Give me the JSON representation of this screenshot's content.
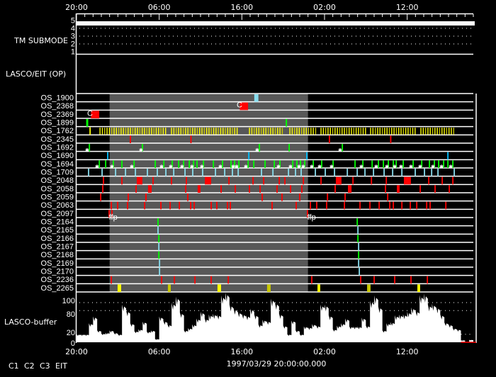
{
  "colors": {
    "C1": "#ff0000",
    "C2": "#00ff00",
    "C3": "#88ddee",
    "C3_alt": "#00c0ff",
    "EIT": "#ffff00",
    "EIT_alt": "#c8c800",
    "shade": "#585858",
    "axis": "#ffffff"
  },
  "time_axis": {
    "start": "03/29 20:00",
    "end": "03/31 20:00",
    "major_labels": [
      "20:00",
      "06:00",
      "16:00",
      "02:00",
      "12:00"
    ],
    "major_times": [
      "03/29 20:00",
      "03/30 06:00",
      "03/30 16:00",
      "03/31 02:00",
      "03/31 12:00"
    ]
  },
  "footer_date": "1997/03/29 20:00:00.000",
  "legend": [
    {
      "label": "C1",
      "color_key": "C1"
    },
    {
      "label": "C2",
      "color_key": "C2"
    },
    {
      "label": "C3",
      "color_key": "C3"
    },
    {
      "label": "EIT",
      "color_key": "EIT"
    }
  ],
  "tm_submode": {
    "label": "TM SUBMODE",
    "levels": [
      "5",
      "4",
      "3",
      "2",
      "1"
    ],
    "value": 5
  },
  "lasco_eit": {
    "label": "LASCO/EIT (OP)"
  },
  "shaded_period": {
    "start": "03/30 00:00",
    "end": "03/31 00:00"
  },
  "rows": [
    {
      "name": "OS_1900",
      "blocks": [
        {
          "c": "C3",
          "s": "03/30 17:30",
          "e": "03/30 18:00"
        }
      ]
    },
    {
      "name": "OS_2368",
      "blocks": [
        {
          "c": "C1",
          "s": "03/30 15:45",
          "e": "03/30 16:45"
        }
      ],
      "labels": [
        {
          "t": "03/30 15:22",
          "text": "C",
          "c": "axis"
        }
      ]
    },
    {
      "name": "OS_2369",
      "blocks": [
        {
          "c": "C1",
          "s": "03/29 21:45",
          "e": "03/29 22:45"
        }
      ],
      "labels": [
        {
          "t": "03/29 21:17",
          "text": "C",
          "c": "axis"
        }
      ]
    },
    {
      "name": "OS_1899",
      "blocks": [
        {
          "c": "C2",
          "s": "03/29 21:10",
          "e": "03/29 21:25"
        },
        {
          "c": "C2",
          "s": "03/30 21:18",
          "e": "03/30 21:28"
        }
      ]
    },
    {
      "name": "OS_1762",
      "lines": [
        {
          "c": "EIT",
          "times": [
            "03/29 21:38"
          ]
        }
      ],
      "series_segments": [
        {
          "c": "EIT",
          "s": "03/29 22:50",
          "e": "03/30 06:53",
          "interval_min": 17
        },
        {
          "c": "EIT",
          "s": "03/30 07:29",
          "e": "03/30 15:32",
          "interval_min": 17
        },
        {
          "c": "EIT",
          "s": "03/30 16:55",
          "e": "03/30 21:02",
          "interval_min": 17
        },
        {
          "c": "EIT",
          "s": "03/30 21:48",
          "e": "03/31 00:58",
          "interval_min": 17
        },
        {
          "c": "EIT",
          "s": "03/31 01:34",
          "e": "03/31 06:58",
          "interval_min": 17
        },
        {
          "c": "EIT",
          "s": "03/31 07:34",
          "e": "03/31 12:58",
          "interval_min": 17
        },
        {
          "c": "EIT",
          "s": "03/31 13:39",
          "e": "03/31 17:41",
          "interval_min": 17
        }
      ]
    },
    {
      "name": "OS_2345",
      "lines": [
        {
          "c": "C1",
          "times": [
            "03/30 02:30",
            "03/30 09:50",
            "03/31 02:35",
            "03/31 10:00"
          ]
        }
      ]
    },
    {
      "name": "OS_1692",
      "lines": [
        {
          "c": "C2",
          "times": [
            "03/29 21:33",
            "03/30 03:58",
            "03/30 18:07",
            "03/30 21:43",
            "03/31 04:09"
          ]
        }
      ],
      "stars": [
        "03/29 21:17",
        "03/30 03:48",
        "03/30 17:51",
        "03/31 03:53"
      ]
    },
    {
      "name": "OS_1690",
      "lines": [
        {
          "c": "C3_alt",
          "times": [
            "03/29 23:46",
            "03/30 16:50",
            "03/30 23:51",
            "03/31 16:55"
          ]
        }
      ]
    },
    {
      "name": "OS_1694",
      "lines": [
        {
          "c": "C2",
          "times": [
            "03/29 22:45",
            "03/29 23:31",
            "03/30 00:27",
            "03/30 01:29",
            "03/30 02:57",
            "03/30 05:31",
            "03/30 06:33",
            "03/30 07:34",
            "03/30 08:21",
            "03/30 08:57",
            "03/30 09:38",
            "03/30 10:09",
            "03/30 10:34",
            "03/30 11:21",
            "03/30 12:33",
            "03/30 13:39",
            "03/30 14:41",
            "03/30 15:07",
            "03/30 15:38",
            "03/30 16:45",
            "03/30 17:26",
            "03/30 18:48",
            "03/30 19:55",
            "03/30 20:36",
            "03/30 22:09",
            "03/30 22:39",
            "03/30 23:05",
            "03/30 23:36",
            "03/31 00:38",
            "03/31 01:39",
            "03/31 03:02",
            "03/31 05:41",
            "03/31 06:38",
            "03/31 07:45",
            "03/31 08:31",
            "03/31 09:07",
            "03/31 09:43",
            "03/31 10:19",
            "03/31 10:40",
            "03/31 11:31",
            "03/31 12:43",
            "03/31 13:45",
            "03/31 14:41",
            "03/31 15:17",
            "03/31 15:48",
            "03/31 16:24",
            "03/31 16:55",
            "03/31 17:31"
          ]
        }
      ],
      "stars": [
        "03/29 22:29",
        "03/30 00:17",
        "03/30 02:41",
        "03/30 06:17",
        "03/30 07:24",
        "03/30 08:46",
        "03/30 09:58",
        "03/30 11:10",
        "03/30 13:24",
        "03/30 14:57",
        "03/30 15:22",
        "03/30 16:29",
        "03/30 20:26",
        "03/30 21:53",
        "03/30 22:55",
        "03/30 23:26",
        "03/31 00:27",
        "03/31 01:24",
        "03/31 02:51",
        "03/31 06:27",
        "03/31 08:15",
        "03/31 09:33",
        "03/31 10:29",
        "03/31 11:15",
        "03/31 12:27",
        "03/31 13:34",
        "03/31 15:07",
        "03/31 16:09",
        "03/31 17:16"
      ]
    },
    {
      "name": "OS_1709",
      "lines": [
        {
          "c": "C3",
          "times": [
            "03/29 21:27",
            "03/29 23:05",
            "03/30 00:43",
            "03/30 01:55",
            "03/30 03:07",
            "03/30 04:34",
            "03/30 05:46",
            "03/30 06:48",
            "03/30 07:45",
            "03/30 09:07",
            "03/30 10:03",
            "03/30 11:15",
            "03/30 12:48",
            "03/30 13:55",
            "03/30 14:51",
            "03/30 15:33",
            "03/30 18:22",
            "03/30 19:45",
            "03/30 21:38",
            "03/30 22:29",
            "03/30 23:10",
            "03/31 00:53",
            "03/31 02:05",
            "03/31 03:12",
            "03/31 04:45",
            "03/31 05:57",
            "03/31 06:53",
            "03/31 07:55",
            "03/31 09:12",
            "03/31 10:14",
            "03/31 11:21",
            "03/31 12:58",
            "03/31 14:05",
            "03/31 14:57",
            "03/31 15:43",
            "03/31 17:41"
          ]
        }
      ]
    },
    {
      "name": "OS_2048",
      "lines": [
        {
          "c": "C1",
          "times": [
            "03/29 23:15",
            "03/30 01:29",
            "03/30 05:15",
            "03/30 07:29",
            "03/30 09:17",
            "03/30 14:26",
            "03/30 17:21",
            "03/30 18:38",
            "03/30 20:31",
            "03/30 21:12",
            "03/30 23:26",
            "03/31 01:34",
            "03/31 05:26",
            "03/31 07:40",
            "03/31 09:28",
            "03/31 14:36",
            "03/31 16:14",
            "03/31 17:31"
          ]
        }
      ],
      "blocks": [
        {
          "c": "C1",
          "s": "03/30 03:17",
          "e": "03/30 03:58"
        },
        {
          "c": "C1",
          "s": "03/30 11:31",
          "e": "03/30 12:17"
        },
        {
          "c": "C1",
          "s": "03/31 03:22",
          "e": "03/31 04:03"
        },
        {
          "c": "C1",
          "s": "03/31 11:36",
          "e": "03/31 12:27"
        }
      ]
    },
    {
      "name": "OS_2058",
      "lines": [
        {
          "c": "C1",
          "times": [
            "03/29 23:10",
            "03/30 03:12",
            "03/30 09:12",
            "03/30 13:29",
            "03/30 15:12",
            "03/30 16:55",
            "03/30 18:12",
            "03/30 20:15",
            "03/30 21:53",
            "03/30 23:15",
            "03/31 03:17",
            "03/31 09:22",
            "03/31 13:34",
            "03/31 15:22",
            "03/31 17:05"
          ]
        }
      ],
      "blocks": [
        {
          "c": "C1",
          "s": "03/30 04:39",
          "e": "03/30 05:05"
        },
        {
          "c": "C1",
          "s": "03/30 10:39",
          "e": "03/30 11:00"
        },
        {
          "c": "C1",
          "s": "03/31 04:50",
          "e": "03/31 05:16"
        },
        {
          "c": "C1",
          "s": "03/31 10:45",
          "e": "03/31 11:05"
        }
      ]
    },
    {
      "name": "OS_2059",
      "lines": [
        {
          "c": "C1",
          "times": [
            "03/29 22:55",
            "03/30 02:15",
            "03/30 09:27",
            "03/30 18:27",
            "03/30 20:51",
            "03/30 23:00",
            "03/31 02:21",
            "03/31 04:29",
            "03/31 09:38"
          ]
        }
      ],
      "blocks": [
        {
          "c": "C1",
          "s": "03/30 04:19",
          "e": "03/30 04:29"
        }
      ]
    },
    {
      "name": "OS_2063",
      "lines": [
        {
          "c": "C1",
          "times": [
            "03/30 00:12",
            "03/30 00:58",
            "03/30 02:10",
            "03/30 04:14",
            "03/30 06:12",
            "03/30 07:19",
            "03/30 08:26",
            "03/30 09:48",
            "03/30 10:14",
            "03/30 12:17",
            "03/30 12:58",
            "03/30 14:15",
            "03/30 14:36",
            "03/30 19:39",
            "03/30 22:34",
            "03/31 00:17",
            "03/31 01:03",
            "03/31 02:15",
            "03/31 04:24",
            "03/31 06:17",
            "03/31 07:29",
            "03/31 08:36",
            "03/31 09:53",
            "03/31 10:19",
            "03/31 11:21",
            "03/31 12:22",
            "03/31 13:09",
            "03/31 14:21",
            "03/31 14:46",
            "03/31 16:40"
          ]
        }
      ]
    },
    {
      "name": "OS_2097",
      "lines": [
        {
          "c": "C1",
          "times": [
            "03/29 23:56",
            "03/30 00:17",
            "03/30 23:56"
          ]
        }
      ],
      "labels": [
        {
          "t": "03/30 00:00",
          "text": "ffp",
          "c": "EIT"
        },
        {
          "t": "03/31 00:00",
          "text": "ffp",
          "c": "EIT"
        }
      ]
    },
    {
      "name": "OS_2164",
      "lines": [
        {
          "c": "C2",
          "times": [
            "03/30 05:51",
            "03/31 05:57"
          ]
        }
      ]
    },
    {
      "name": "OS_2165",
      "lines": [
        {
          "c": "C3",
          "times": [
            "03/30 05:51",
            "03/31 06:02"
          ]
        }
      ]
    },
    {
      "name": "OS_2166",
      "lines": [
        {
          "c": "C2",
          "times": [
            "03/30 05:57",
            "03/31 06:02"
          ]
        }
      ]
    },
    {
      "name": "OS_2167",
      "lines": [
        {
          "c": "C3",
          "times": [
            "03/30 05:57",
            "03/31 06:07"
          ]
        }
      ]
    },
    {
      "name": "OS_2168",
      "lines": [
        {
          "c": "C2",
          "times": [
            "03/30 05:57",
            "03/31 06:07"
          ]
        }
      ]
    },
    {
      "name": "OS_2169",
      "lines": [
        {
          "c": "C3",
          "times": [
            "03/30 06:02",
            "03/31 06:07"
          ]
        }
      ]
    },
    {
      "name": "OS_2170",
      "lines": [
        {
          "c": "C3",
          "times": [
            "03/30 06:02",
            "03/31 06:12"
          ]
        }
      ]
    },
    {
      "name": "OS_2236",
      "lines": [
        {
          "c": "C1",
          "times": [
            "03/30 00:12",
            "03/30 06:17",
            "03/30 07:50",
            "03/30 10:19",
            "03/30 12:17",
            "03/30 14:21",
            "03/31 00:27",
            "03/31 06:22",
            "03/31 08:00",
            "03/31 10:29",
            "03/31 12:27",
            "03/31 14:26"
          ]
        }
      ]
    },
    {
      "name": "OS_2265",
      "blocks": [
        {
          "c": "EIT",
          "s": "03/30 00:58",
          "e": "03/30 01:24"
        },
        {
          "c": "EIT_alt",
          "s": "03/30 07:03",
          "e": "03/30 07:24"
        },
        {
          "c": "EIT",
          "s": "03/30 13:03",
          "e": "03/30 13:29"
        },
        {
          "c": "EIT_alt",
          "s": "03/30 19:03",
          "e": "03/30 19:29"
        },
        {
          "c": "EIT",
          "s": "03/31 01:09",
          "e": "03/31 01:29"
        },
        {
          "c": "EIT_alt",
          "s": "03/31 07:09",
          "e": "03/31 07:34"
        },
        {
          "c": "EIT",
          "s": "03/31 13:14",
          "e": "03/31 13:34"
        }
      ]
    }
  ],
  "chart_data": {
    "type": "area",
    "title": "",
    "ylabel": "LASCO-buffer",
    "ytick_labels": [
      "100",
      "80",
      "20",
      "0"
    ],
    "ytick_values": [
      100,
      80,
      20,
      0
    ],
    "ylim": [
      0,
      125
    ],
    "grid_dotted": [
      100,
      80
    ],
    "start": "03/29 20:00",
    "interval_min": 30,
    "values": [
      20,
      20,
      20,
      48,
      65,
      30,
      22,
      24,
      30,
      24,
      20,
      95,
      80,
      48,
      28,
      33,
      52,
      27,
      30,
      8,
      65,
      54,
      45,
      100,
      115,
      75,
      30,
      36,
      45,
      60,
      77,
      60,
      70,
      72,
      70,
      118,
      125,
      95,
      85,
      77,
      72,
      68,
      85,
      70,
      45,
      57,
      54,
      110,
      100,
      72,
      42,
      20,
      55,
      30,
      20,
      40,
      38,
      46,
      42,
      95,
      95,
      68,
      33,
      42,
      48,
      60,
      40,
      40,
      40,
      62,
      42,
      105,
      118,
      90,
      30,
      48,
      51,
      68,
      70,
      71,
      77,
      88,
      80,
      119,
      122,
      95,
      97,
      89,
      70,
      50,
      45,
      36,
      33,
      5,
      0,
      6,
      0
    ],
    "xtick_labels": [
      "20:00",
      "06:00",
      "16:00",
      "02:00",
      "12:00"
    ]
  }
}
